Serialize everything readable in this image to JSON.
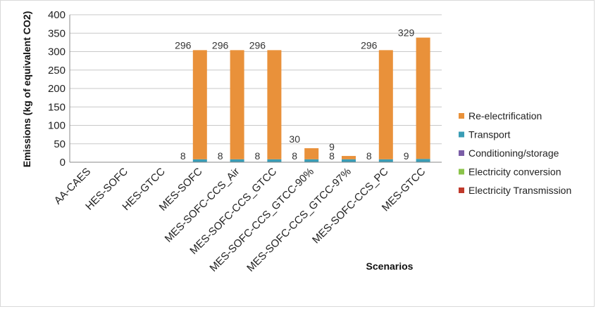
{
  "chart_data": {
    "type": "bar",
    "stacked": true,
    "title": "",
    "xlabel": "Scenarios",
    "ylabel": "Emissions (kg of equivalent CO2)",
    "ylim": [
      0,
      400
    ],
    "yticks": [
      0,
      50,
      100,
      150,
      200,
      250,
      300,
      350,
      400
    ],
    "grid": true,
    "legend_position": "right",
    "categories": [
      "AA-CAES",
      "HES-SOFC",
      "HES-GTCC",
      "MES-SOFC",
      "MES-SOFC-CCS_Air",
      "MES-SOFC-CCS_GTCC",
      "MES-SOFC-CCS_GTCC-90%",
      "MES-SOFC-CCS_GTCC-97%",
      "MES-SOFC-CCS_PC",
      "MES-GTCC"
    ],
    "series": [
      {
        "name": "Electricity Transmission",
        "color": "#c0392b",
        "values": [
          0,
          0,
          0,
          0,
          0,
          0,
          0,
          0,
          0,
          0
        ]
      },
      {
        "name": "Electricity conversion",
        "color": "#8bc34a",
        "values": [
          0,
          0,
          0,
          0,
          0,
          0,
          0,
          0,
          0,
          0
        ]
      },
      {
        "name": "Conditioning/storage",
        "color": "#7b5ea7",
        "values": [
          0,
          0,
          0,
          0,
          0,
          0,
          0,
          0,
          0,
          0
        ]
      },
      {
        "name": "Transport",
        "color": "#3a9db5",
        "values": [
          0,
          0,
          0,
          8,
          8,
          8,
          8,
          8,
          8,
          9
        ]
      },
      {
        "name": "Re-electrification",
        "color": "#e9913a",
        "values": [
          0,
          0,
          0,
          296,
          296,
          296,
          30,
          9,
          296,
          329
        ]
      }
    ],
    "data_labels": {
      "transport": [
        "",
        "",
        "",
        "8",
        "8",
        "8",
        "8",
        "8",
        "8",
        "9"
      ],
      "re_electrification": [
        "",
        "",
        "",
        "296",
        "296",
        "296",
        "30",
        "9",
        "296",
        "329"
      ]
    },
    "legend_order": [
      "Re-electrification",
      "Transport",
      "Conditioning/storage",
      "Electricity conversion",
      "Electricity Transmission"
    ]
  }
}
